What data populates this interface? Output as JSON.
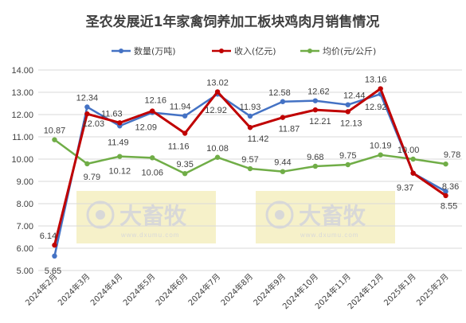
{
  "chart_data": {
    "type": "line",
    "title": "圣农发展近1年家禽饲养加工板块鸡肉月销售情况",
    "categories": [
      "2024年2月",
      "2024年3月",
      "2024年4月",
      "2024年5月",
      "2024年6月",
      "2024年7月",
      "2024年8月",
      "2024年9月",
      "2024年10月",
      "2024年11月",
      "2024年12月",
      "2025年1月",
      "2025年2月"
    ],
    "ylim": [
      5.0,
      14.0
    ],
    "yticks": [
      "5.00",
      "6.00",
      "7.00",
      "8.00",
      "9.00",
      "10.00",
      "11.00",
      "12.00",
      "13.00",
      "14.00"
    ],
    "grid": true,
    "legend_position": "top",
    "series": [
      {
        "name": "数量(万吨)",
        "color": "#4472c4",
        "values": [
          5.65,
          12.34,
          11.49,
          12.09,
          11.94,
          12.92,
          11.93,
          12.58,
          12.62,
          12.44,
          12.92,
          9.37,
          8.55
        ],
        "labels": [
          "5.65",
          "12.34",
          "11.49",
          "12.09",
          "11.94",
          "12.92",
          "11.93",
          "12.58",
          "12.62",
          "12.44",
          "12.92",
          "9.37",
          "8.55"
        ]
      },
      {
        "name": "收入(亿元)",
        "color": "#c00000",
        "values": [
          6.14,
          12.03,
          11.63,
          12.16,
          11.16,
          13.02,
          11.42,
          11.87,
          12.21,
          12.13,
          13.16,
          9.37,
          8.36
        ],
        "labels": [
          "6.14",
          "12.03",
          "11.63",
          "12.16",
          "11.16",
          "13.02",
          "11.42",
          "11.87",
          "12.21",
          "12.13",
          "13.16",
          "",
          "8.36"
        ]
      },
      {
        "name": "均价(元/公斤)",
        "color": "#70ad47",
        "values": [
          10.87,
          9.79,
          10.12,
          10.06,
          9.35,
          10.08,
          9.57,
          9.44,
          9.68,
          9.75,
          10.19,
          10.0,
          9.78
        ],
        "labels": [
          "10.87",
          "9.79",
          "10.12",
          "10.06",
          "9.35",
          "10.08",
          "9.57",
          "9.44",
          "9.68",
          "9.75",
          "10.19",
          "10.00",
          "9.78"
        ]
      }
    ]
  },
  "watermark": {
    "text": "大畜牧",
    "sub": "www.dxumu.com",
    "color": "#f5eec0",
    "icon": "eye-logo-icon"
  }
}
